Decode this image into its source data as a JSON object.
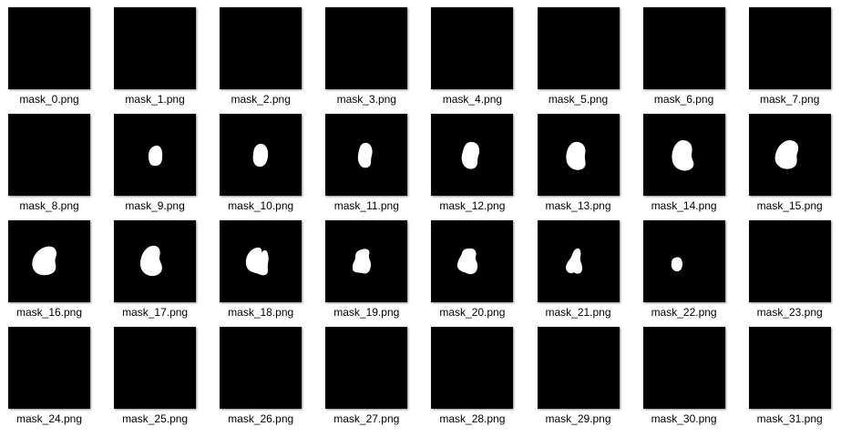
{
  "files": [
    {
      "name": "mask_0.png",
      "shape": "none"
    },
    {
      "name": "mask_1.png",
      "shape": "none"
    },
    {
      "name": "mask_2.png",
      "shape": "none"
    },
    {
      "name": "mask_3.png",
      "shape": "none"
    },
    {
      "name": "mask_4.png",
      "shape": "none"
    },
    {
      "name": "mask_5.png",
      "shape": "none"
    },
    {
      "name": "mask_6.png",
      "shape": "none"
    },
    {
      "name": "mask_7.png",
      "shape": "none"
    },
    {
      "name": "mask_8.png",
      "shape": "none"
    },
    {
      "name": "mask_9.png",
      "shape": "s1"
    },
    {
      "name": "mask_10.png",
      "shape": "s2"
    },
    {
      "name": "mask_11.png",
      "shape": "s3"
    },
    {
      "name": "mask_12.png",
      "shape": "s4"
    },
    {
      "name": "mask_13.png",
      "shape": "s5"
    },
    {
      "name": "mask_14.png",
      "shape": "s6"
    },
    {
      "name": "mask_15.png",
      "shape": "s7"
    },
    {
      "name": "mask_16.png",
      "shape": "s8"
    },
    {
      "name": "mask_17.png",
      "shape": "s9"
    },
    {
      "name": "mask_18.png",
      "shape": "s10"
    },
    {
      "name": "mask_19.png",
      "shape": "s11"
    },
    {
      "name": "mask_20.png",
      "shape": "s12"
    },
    {
      "name": "mask_21.png",
      "shape": "s13"
    },
    {
      "name": "mask_22.png",
      "shape": "s14"
    },
    {
      "name": "mask_23.png",
      "shape": "none"
    },
    {
      "name": "mask_24.png",
      "shape": "none"
    },
    {
      "name": "mask_25.png",
      "shape": "none"
    },
    {
      "name": "mask_26.png",
      "shape": "none"
    },
    {
      "name": "mask_27.png",
      "shape": "none"
    },
    {
      "name": "mask_28.png",
      "shape": "none"
    },
    {
      "name": "mask_29.png",
      "shape": "none"
    },
    {
      "name": "mask_30.png",
      "shape": "none"
    },
    {
      "name": "mask_31.png",
      "shape": "none"
    }
  ],
  "colors": {
    "background": "#ffffff",
    "mask_background": "#000000",
    "mask_foreground": "#ffffff"
  }
}
